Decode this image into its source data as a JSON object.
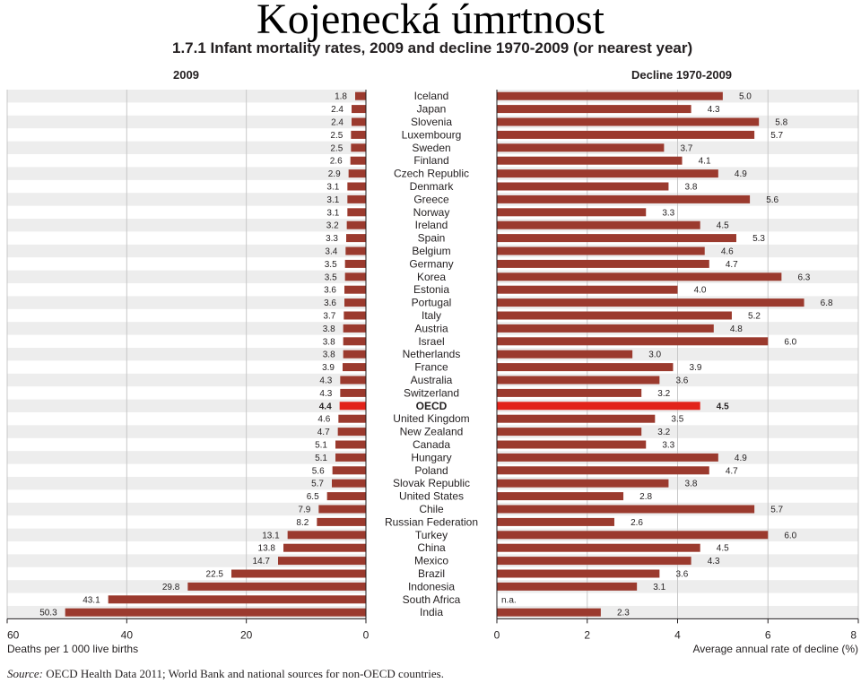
{
  "slide_title": "Kojenecká úmrtnost",
  "source": {
    "label": "Source:",
    "text": "OECD Health Data 2011; World Bank and national sources for non-OECD countries."
  },
  "chart_data": [
    {
      "type": "bar",
      "orientation": "horizontal",
      "title": "1.7.1 Infant mortality rates, 2009 and decline 1970-2009 (or nearest year)",
      "panel_title": "2009",
      "xlabel": "Deaths per 1 000 live births",
      "xlim": [
        0,
        60
      ],
      "reversed": true,
      "ticks": [
        60,
        40,
        20,
        0
      ],
      "grid": true,
      "categories": [
        "Iceland",
        "Japan",
        "Slovenia",
        "Luxembourg",
        "Sweden",
        "Finland",
        "Czech Republic",
        "Denmark",
        "Greece",
        "Norway",
        "Ireland",
        "Spain",
        "Belgium",
        "Germany",
        "Korea",
        "Estonia",
        "Portugal",
        "Italy",
        "Austria",
        "Israel",
        "Netherlands",
        "France",
        "Australia",
        "Switzerland",
        "OECD",
        "United Kingdom",
        "New Zealand",
        "Canada",
        "Hungary",
        "Poland",
        "Slovak Republic",
        "United States",
        "Chile",
        "Russian Federation",
        "Turkey",
        "China",
        "Mexico",
        "Brazil",
        "Indonesia",
        "South Africa",
        "India"
      ],
      "values": [
        1.8,
        2.4,
        2.4,
        2.5,
        2.5,
        2.6,
        2.9,
        3.1,
        3.1,
        3.1,
        3.2,
        3.3,
        3.4,
        3.5,
        3.5,
        3.6,
        3.6,
        3.7,
        3.8,
        3.8,
        3.8,
        3.9,
        4.3,
        4.3,
        4.4,
        4.6,
        4.7,
        5.1,
        5.1,
        5.6,
        5.7,
        6.5,
        7.9,
        8.2,
        13.1,
        13.8,
        14.7,
        22.5,
        29.8,
        43.1,
        50.3
      ],
      "value_labels": [
        "1.8",
        "2.4",
        "2.4",
        "2.5",
        "2.5",
        "2.6",
        "2.9",
        "3.1",
        "3.1",
        "3.1",
        "3.2",
        "3.3",
        "3.4",
        "3.5",
        "3.5",
        "3.6",
        "3.6",
        "3.7",
        "3.8",
        "3.8",
        "3.8",
        "3.9",
        "4.3",
        "4.3",
        "4.4",
        "4.6",
        "4.7",
        "5.1",
        "5.1",
        "5.6",
        "5.7",
        "6.5",
        "7.9",
        "8.2",
        "13.1",
        "13.8",
        "14.7",
        "22.5",
        "29.8",
        "43.1",
        "50.3"
      ],
      "highlight": "OECD",
      "colors": {
        "bar": "#9b3a2e",
        "highlight": "#e2231a",
        "grid": "#c8c8c8",
        "row_bg": "#ededed"
      }
    },
    {
      "type": "bar",
      "orientation": "horizontal",
      "panel_title": "Decline 1970-2009",
      "xlabel": "Average annual rate of decline (%)",
      "xlim": [
        0,
        8
      ],
      "ticks": [
        0,
        2,
        4,
        6,
        8
      ],
      "grid": true,
      "categories": [
        "Iceland",
        "Japan",
        "Slovenia",
        "Luxembourg",
        "Sweden",
        "Finland",
        "Czech Republic",
        "Denmark",
        "Greece",
        "Norway",
        "Ireland",
        "Spain",
        "Belgium",
        "Germany",
        "Korea",
        "Estonia",
        "Portugal",
        "Italy",
        "Austria",
        "Israel",
        "Netherlands",
        "France",
        "Australia",
        "Switzerland",
        "OECD",
        "United Kingdom",
        "New Zealand",
        "Canada",
        "Hungary",
        "Poland",
        "Slovak Republic",
        "United States",
        "Chile",
        "Russian Federation",
        "Turkey",
        "China",
        "Mexico",
        "Brazil",
        "Indonesia",
        "South Africa",
        "India"
      ],
      "values": [
        5.0,
        4.3,
        5.8,
        5.7,
        3.7,
        4.1,
        4.9,
        3.8,
        5.6,
        3.3,
        4.5,
        5.3,
        4.6,
        4.7,
        6.3,
        4.0,
        6.8,
        5.2,
        4.8,
        6.0,
        3.0,
        3.9,
        3.6,
        3.2,
        4.5,
        3.5,
        3.2,
        3.3,
        4.9,
        4.7,
        3.8,
        2.8,
        5.7,
        2.6,
        6.0,
        4.5,
        4.3,
        3.6,
        3.1,
        null,
        2.3
      ],
      "value_labels": [
        "5.0",
        "4.3",
        "5.8",
        "5.7",
        "3.7",
        "4.1",
        "4.9",
        "3.8",
        "5.6",
        "3.3",
        "4.5",
        "5.3",
        "4.6",
        "4.7",
        "6.3",
        "4.0",
        "6.8",
        "5.2",
        "4.8",
        "6.0",
        "3.0",
        "3.9",
        "3.6",
        "3.2",
        "4.5",
        "3.5",
        "3.2",
        "3.3",
        "4.9",
        "4.7",
        "3.8",
        "2.8",
        "5.7",
        "2.6",
        "6.0",
        "4.5",
        "4.3",
        "3.6",
        "3.1",
        "n.a.",
        "2.3"
      ],
      "highlight": "OECD",
      "colors": {
        "bar": "#9b3a2e",
        "highlight": "#e2231a",
        "grid": "#c8c8c8",
        "row_bg": "#ededed"
      }
    }
  ]
}
